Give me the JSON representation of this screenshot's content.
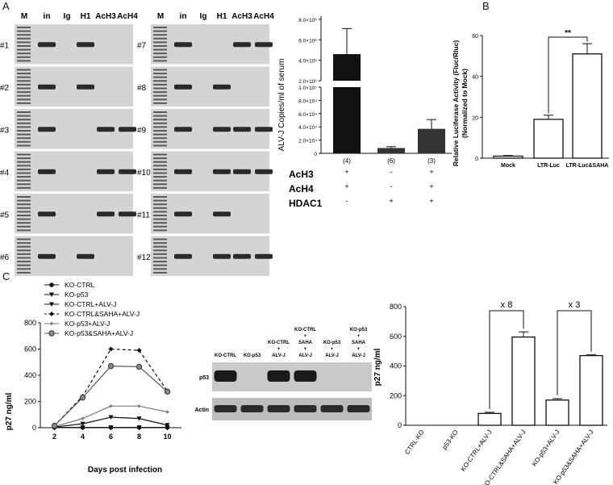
{
  "panels": {
    "a": "A",
    "b": "B",
    "c": "C"
  },
  "gels": {
    "lane_headers": [
      "M",
      "in",
      "Ig",
      "H1",
      "AcH3",
      "AcH4"
    ],
    "left_samples": [
      "#1",
      "#2",
      "#3",
      "#4",
      "#5",
      "#6"
    ],
    "right_samples": [
      "#7",
      "#8",
      "#9",
      "#10",
      "#11",
      "#12"
    ],
    "left_bands": [
      [
        1,
        0,
        1,
        0,
        0
      ],
      [
        1,
        0,
        1,
        0,
        0
      ],
      [
        1,
        0,
        0,
        1,
        1
      ],
      [
        1,
        0,
        0,
        1,
        1
      ],
      [
        1,
        0,
        0,
        1,
        1
      ],
      [
        1,
        0,
        1,
        0,
        0
      ]
    ],
    "right_bands": [
      [
        1,
        0,
        0,
        1,
        1
      ],
      [
        1,
        0,
        1,
        0,
        0
      ],
      [
        1,
        0,
        1,
        1,
        1
      ],
      [
        1,
        0,
        1,
        1,
        1
      ],
      [
        1,
        0,
        1,
        0,
        0
      ],
      [
        1,
        0,
        1,
        1,
        1
      ]
    ]
  },
  "western_blot": {
    "lane_labels": [
      "KO-CTRL",
      "KO-p53",
      "KO-CTRL\n+\nALV-J",
      "KO-CTRL\n+\nSAHA\n+\nALV-J",
      "KO-p53\n+\nALV-J",
      "KO-p53\n+\nSAHA\n+\nALV-J"
    ],
    "rows": [
      "p53",
      "Actin"
    ],
    "p53_presence": [
      1,
      0,
      1,
      1,
      0,
      0
    ]
  },
  "chart_data": [
    {
      "id": "alvj-serum",
      "type": "bar",
      "ylabel": "ALV-J Copies/ml of serum",
      "categories": [
        "(4)",
        "(6)",
        "(3)"
      ],
      "values": [
        4600000,
        8000,
        37000
      ],
      "errors": [
        2500000,
        2000,
        14000
      ],
      "broken_axis": true,
      "upper_ticks": [
        "2.0×10⁶",
        "4.0×10⁶",
        "6.0×10⁶",
        "8.0×10⁶"
      ],
      "upper_range": [
        2000000,
        8000000
      ],
      "lower_ticks": [
        "0",
        "2.0×10⁴",
        "4.0×10⁴",
        "6.0×10⁴",
        "8.0×10⁴",
        "1.0×10⁵"
      ],
      "lower_range": [
        0,
        100000
      ],
      "bar_color": "#111111",
      "condition_table": {
        "rows": [
          {
            "label": "AcH3",
            "signs": [
              "+",
              "-",
              "+"
            ]
          },
          {
            "label": "AcH4",
            "signs": [
              "+",
              "-",
              "+"
            ]
          },
          {
            "label": "HDAC1",
            "signs": [
              "-",
              "+",
              "+"
            ]
          }
        ]
      }
    },
    {
      "id": "luciferase",
      "type": "bar",
      "ylabel": "Relative Luciferase Activity (Fluc/Rluc)",
      "ylabel2": "(Normalized to Mock)",
      "categories": [
        "Mock",
        "LTR-Luc",
        "LTR-Luc&SAHA"
      ],
      "values": [
        1,
        19,
        51
      ],
      "errors": [
        0.3,
        2,
        5
      ],
      "ylim": [
        0,
        60
      ],
      "yticks": [
        0,
        20,
        40,
        60
      ],
      "significance": {
        "from": 1,
        "to": 2,
        "label": "**"
      }
    },
    {
      "id": "p27-timecourse",
      "type": "line",
      "ylabel": "p27 ng/ml",
      "xlabel": "Days post infection",
      "x": [
        2,
        4,
        6,
        8,
        10
      ],
      "xlim": [
        1,
        11
      ],
      "ylim": [
        0,
        800
      ],
      "yticks": [
        0,
        200,
        400,
        600,
        800
      ],
      "series": [
        {
          "name": "KO-CTRL",
          "values": [
            2,
            2,
            2,
            2,
            2
          ],
          "marker": "circle",
          "dash": false,
          "color": "#111111"
        },
        {
          "name": "KO-p53",
          "values": [
            2,
            2,
            2,
            2,
            2
          ],
          "marker": "triangle-down",
          "dash": false,
          "color": "#111111"
        },
        {
          "name": "KO-CTRL+ALV-J",
          "values": [
            5,
            30,
            80,
            70,
            20
          ],
          "marker": "triangle-down",
          "dash": false,
          "color": "#111111"
        },
        {
          "name": "KO-CTRL&SAHA+ALV-J",
          "values": [
            15,
            240,
            600,
            590,
            280
          ],
          "marker": "diamond",
          "dash": true,
          "color": "#111111"
        },
        {
          "name": "KO-p53+ALV-J",
          "values": [
            8,
            70,
            165,
            165,
            120
          ],
          "marker": "diamond-small",
          "dash": false,
          "color": "#777777"
        },
        {
          "name": "KO-p53&SAHA+ALV-J",
          "values": [
            15,
            230,
            470,
            465,
            275
          ],
          "marker": "circle-gray",
          "dash": false,
          "color": "#555555"
        }
      ]
    },
    {
      "id": "p27-bars",
      "type": "bar",
      "ylabel": "p27 ng/ml",
      "categories": [
        "CTRL-KO",
        "p53-KO",
        "KO-CTRL+ALV-J",
        "KO-CTRL&SAHA+ALV-J",
        "KO-p53+ALV-J",
        "KO-p53&SAHA+ALV-J"
      ],
      "values": [
        0,
        0,
        80,
        595,
        170,
        470
      ],
      "errors": [
        0,
        0,
        8,
        35,
        10,
        5
      ],
      "ylim": [
        0,
        800
      ],
      "yticks": [
        0,
        200,
        400,
        600,
        800
      ],
      "brackets": [
        {
          "from": 2,
          "to": 3,
          "label": "x 8"
        },
        {
          "from": 4,
          "to": 5,
          "label": "x 3"
        }
      ]
    }
  ]
}
